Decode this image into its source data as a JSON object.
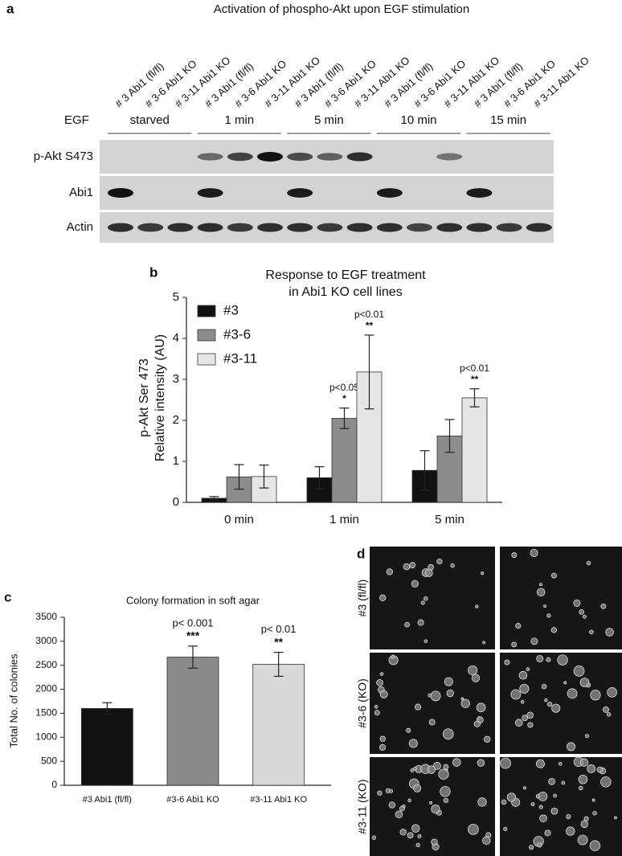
{
  "panel_a": {
    "label": "a",
    "title": "Activation of phospho-Akt upon EGF stimulation",
    "lanes": [
      "# 3 Abi1 (fl/fl)",
      "# 3-6 Abi1 KO",
      "# 3-11 Abi1 KO",
      "# 3 Abi1 (fl/fl)",
      "# 3-6 Abi1 KO",
      "# 3-11 Abi1 KO",
      "# 3 Abi1 (fl/fl)",
      "# 3-6 Abi1 KO",
      "# 3-11 Abi1 KO",
      "# 3 Abi1 (fl/fl)",
      "# 3-6 Abi1 KO",
      "# 3-11 Abi1 KO",
      "# 3 Abi1 (fl/fl)",
      "# 3-6 Abi1 KO",
      "# 3-11 Abi1 KO"
    ],
    "treatment_label": "EGF",
    "groups": [
      "starved",
      "1 min",
      "5 min",
      "10 min",
      "15 min"
    ],
    "rows": [
      "p-Akt S473",
      "Abi1",
      "Actin"
    ]
  },
  "chart_data": [
    {
      "type": "bar",
      "panel": "b",
      "title": [
        "Response to EGF treatment",
        "in Abi1 KO cell lines"
      ],
      "ylabel": [
        "p-Akt Ser 473",
        "Relative intensity (AU)"
      ],
      "categories": [
        "0 min",
        "1 min",
        "5 min"
      ],
      "series": [
        {
          "name": "#3",
          "color": "#111111",
          "values": [
            0.1,
            0.6,
            0.78
          ],
          "errors": [
            0.04,
            0.27,
            0.48
          ],
          "p_labels": [
            null,
            null,
            null
          ],
          "stars": [
            null,
            null,
            null
          ]
        },
        {
          "name": "#3-6",
          "color": "#8c8c8c",
          "values": [
            0.62,
            2.05,
            1.62
          ],
          "errors": [
            0.3,
            0.25,
            0.4
          ],
          "p_labels": [
            null,
            "p<0.05",
            null
          ],
          "stars": [
            null,
            "*",
            null
          ]
        },
        {
          "name": "#3-11",
          "color": "#e6e6e6",
          "values": [
            0.63,
            3.18,
            2.55
          ],
          "errors": [
            0.28,
            0.9,
            0.22
          ],
          "p_labels": [
            null,
            "p<0.01",
            "p<0.01"
          ],
          "stars": [
            null,
            "**",
            "**"
          ]
        }
      ],
      "ylim": [
        0,
        5
      ],
      "yticks": [
        0,
        1,
        2,
        3,
        4,
        5
      ],
      "legend": "upper-left"
    },
    {
      "type": "bar",
      "panel": "c",
      "title": "Colony formation in soft agar",
      "ylabel": "Total No. of colonies",
      "categories": [
        "#3 Abi1 (fl/fl)",
        "#3-6 Abi1 KO",
        "#3-11 Abi1 KO"
      ],
      "values": [
        1600,
        2670,
        2520
      ],
      "errors": [
        120,
        230,
        250
      ],
      "colors": [
        "#111111",
        "#8a8a8a",
        "#d9d9d9"
      ],
      "p_labels": [
        null,
        "p< 0.001",
        "p< 0.01"
      ],
      "stars": [
        null,
        "***",
        "**"
      ],
      "ylim": [
        0,
        3500
      ],
      "yticks": [
        0,
        500,
        1000,
        1500,
        2000,
        2500,
        3000,
        3500
      ]
    }
  ],
  "panel_d": {
    "label": "d",
    "rows": [
      "#3 (fl/fl)",
      "#3-6 (KO)",
      "#3-11 (KO)"
    ]
  }
}
